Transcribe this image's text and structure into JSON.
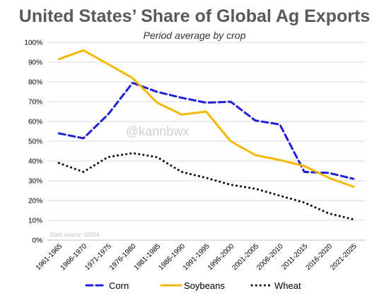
{
  "chart_data": {
    "type": "line",
    "title": "United States’ Share of Global Ag Exports",
    "subtitle": "Period average by crop",
    "categories": [
      "1961-1965",
      "1966-1970",
      "1971-1975",
      "1976-1980",
      "1981-1985",
      "1986-1990",
      "1991-1995",
      "1996-2000",
      "2001-2005",
      "2006-2010",
      "2011-2015",
      "2016-2020",
      "2021-2025"
    ],
    "series": [
      {
        "name": "Corn",
        "color": "#1f1fd6",
        "style": "dashed",
        "values": [
          0.54,
          0.515,
          0.635,
          0.795,
          0.75,
          0.72,
          0.695,
          0.7,
          0.605,
          0.585,
          0.345,
          0.34,
          0.31
        ]
      },
      {
        "name": "Soybeans",
        "color": "#f5b800",
        "style": "solid",
        "values": [
          0.915,
          0.96,
          0.89,
          0.82,
          0.695,
          0.635,
          0.65,
          0.5,
          0.43,
          0.405,
          0.375,
          0.315,
          0.27
        ]
      },
      {
        "name": "Wheat",
        "color": "#000000",
        "style": "dotted",
        "values": [
          0.39,
          0.345,
          0.42,
          0.44,
          0.42,
          0.345,
          0.315,
          0.28,
          0.26,
          0.225,
          0.19,
          0.135,
          0.105
        ]
      }
    ],
    "yticks": [
      "0%",
      "10%",
      "20%",
      "30%",
      "40%",
      "50%",
      "60%",
      "70%",
      "80%",
      "90%",
      "100%"
    ],
    "ylim": [
      0,
      1
    ],
    "grid": "horizontal",
    "legend_position": "bottom",
    "xlabel": "",
    "ylabel": "",
    "watermark": "@kannbwx",
    "source_note": "Data source: USDA"
  }
}
